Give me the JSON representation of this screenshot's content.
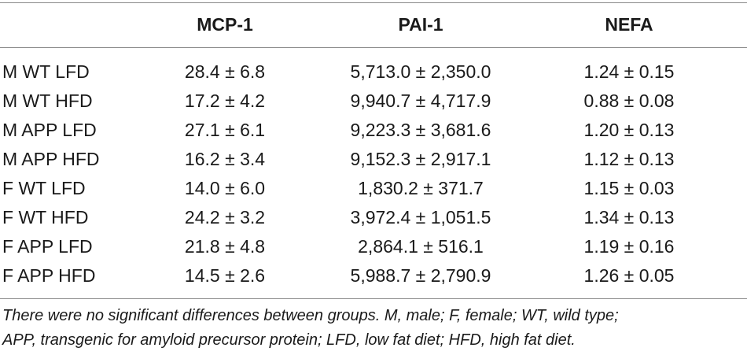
{
  "table": {
    "headers": [
      "",
      "MCP-1",
      "PAI-1",
      "NEFA"
    ],
    "rows": [
      [
        "M WT LFD",
        "28.4 ± 6.8",
        "5,713.0 ± 2,350.0",
        "1.24 ± 0.15"
      ],
      [
        "M WT HFD",
        "17.2 ± 4.2",
        "9,940.7 ± 4,717.9",
        "0.88 ± 0.08"
      ],
      [
        "M APP LFD",
        "27.1 ± 6.1",
        "9,223.3 ± 3,681.6",
        "1.20 ± 0.13"
      ],
      [
        "M APP HFD",
        "16.2 ± 3.4",
        "9,152.3 ± 2,917.1",
        "1.12 ± 0.13"
      ],
      [
        "F WT LFD",
        "14.0 ± 6.0",
        "1,830.2 ± 371.7",
        "1.15 ± 0.03"
      ],
      [
        "F WT HFD",
        "24.2 ± 3.2",
        "3,972.4 ± 1,051.5",
        "1.34 ± 0.13"
      ],
      [
        "F APP LFD",
        "21.8 ± 4.8",
        "2,864.1 ± 516.1",
        "1.19 ± 0.16"
      ],
      [
        "F APP HFD",
        "14.5 ± 2.6",
        "5,988.7 ± 2,790.9",
        "1.26 ± 0.05"
      ]
    ]
  },
  "footnote": {
    "line1": "There were no significant differences between groups. M, male; F, female; WT, wild type;",
    "line2": "APP, transgenic for amyloid precursor protein; LFD, low fat diet; HFD, high fat diet."
  }
}
